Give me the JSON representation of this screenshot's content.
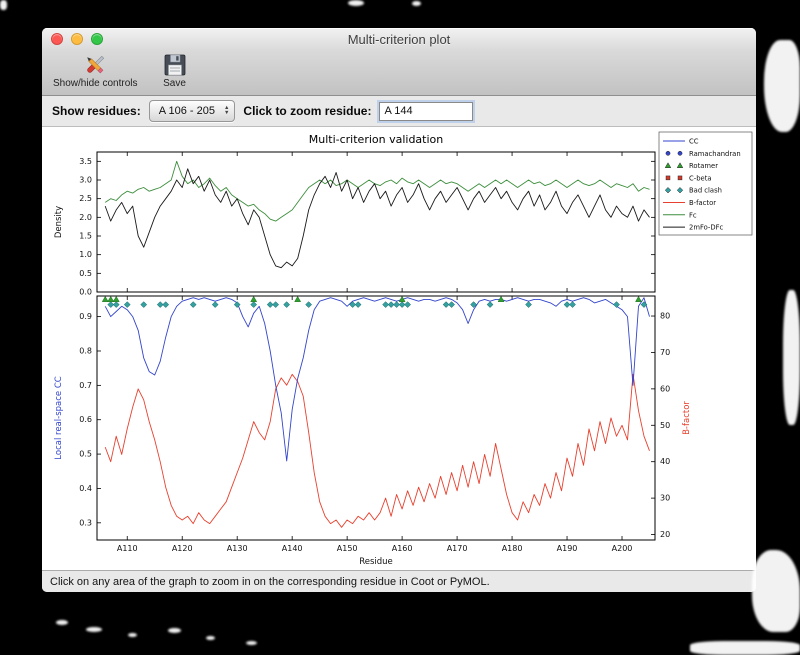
{
  "window": {
    "title": "Multi-criterion plot"
  },
  "toolbar": {
    "items": [
      {
        "icon": "crossed-tools-icon",
        "label": "Show/hide controls"
      },
      {
        "icon": "floppy-disk-icon",
        "label": "Save"
      }
    ]
  },
  "controls": {
    "show_residues_label": "Show residues:",
    "residue_range_value": "A 106 - 205",
    "zoom_residue_label": "Click to zoom residue:",
    "zoom_residue_value": "A 144"
  },
  "status": {
    "text": "Click on any area of the graph to zoom in on the corresponding residue in Coot or PyMOL."
  },
  "traffic_lights": {
    "close": "#fc5753",
    "minimize": "#fdbc40",
    "zoom": "#33c748"
  },
  "icons": {
    "show_hide_controls": "crossed-tools-icon",
    "save": "floppy-disk-icon",
    "popup_arrows": "up-down-arrows-icon"
  },
  "chart_data": {
    "type": "line",
    "title": "Multi-criterion validation",
    "xlabel": "Residue",
    "x_start": 106,
    "x_end": 205,
    "x_ticks": [
      110,
      120,
      130,
      140,
      150,
      160,
      170,
      180,
      190,
      200
    ],
    "x_tick_labels": [
      "A110",
      "A120",
      "A130",
      "A140",
      "A150",
      "A160",
      "A170",
      "A180",
      "A190",
      "A200"
    ],
    "top_panel": {
      "ylabel": "Density",
      "ylim": [
        0,
        3.75
      ],
      "yticks": [
        0.0,
        0.5,
        1.0,
        1.5,
        2.0,
        2.5,
        3.0,
        3.5
      ],
      "series": [
        {
          "name": "Fc",
          "color": "#3d8e3d",
          "values": [
            2.4,
            2.5,
            2.45,
            2.6,
            2.7,
            2.65,
            2.75,
            2.8,
            2.7,
            2.75,
            2.8,
            2.9,
            3.0,
            3.5,
            3.1,
            2.9,
            3.0,
            2.8,
            2.9,
            3.05,
            2.85,
            2.7,
            2.8,
            2.6,
            2.5,
            2.4,
            2.3,
            2.35,
            2.2,
            2.1,
            1.95,
            1.9,
            2.0,
            2.1,
            2.2,
            2.4,
            2.6,
            2.8,
            2.9,
            3.0,
            2.9,
            3.0,
            2.85,
            2.9,
            3.0,
            2.9,
            2.8,
            2.9,
            3.0,
            2.9,
            2.85,
            2.95,
            3.0,
            2.9,
            3.05,
            2.95,
            2.9,
            3.0,
            2.9,
            2.8,
            2.9,
            3.0,
            2.9,
            2.95,
            2.9,
            2.8,
            2.7,
            2.8,
            2.9,
            2.8,
            2.9,
            3.0,
            2.9,
            3.0,
            2.9,
            2.8,
            2.9,
            3.0,
            2.9,
            2.95,
            2.85,
            2.9,
            3.0,
            2.9,
            2.8,
            2.9,
            3.0,
            2.9,
            2.85,
            2.9,
            3.0,
            2.9,
            2.8,
            2.9,
            2.85,
            2.8,
            2.9,
            2.7,
            2.8,
            2.75
          ]
        },
        {
          "name": "2mFo-DFc",
          "color": "#1a1a1a",
          "values": [
            2.3,
            1.9,
            2.2,
            2.4,
            2.1,
            2.3,
            1.5,
            1.2,
            1.6,
            2.0,
            2.3,
            2.5,
            2.7,
            3.0,
            2.8,
            3.3,
            2.9,
            3.1,
            2.7,
            3.0,
            2.6,
            2.4,
            2.7,
            2.3,
            2.5,
            2.1,
            1.8,
            2.2,
            2.0,
            1.5,
            1.0,
            0.7,
            0.65,
            0.8,
            0.7,
            0.9,
            1.5,
            2.2,
            2.6,
            2.9,
            3.1,
            2.8,
            3.2,
            2.7,
            3.0,
            2.5,
            2.8,
            2.4,
            2.7,
            2.9,
            2.5,
            2.7,
            2.3,
            2.6,
            2.8,
            2.4,
            2.6,
            2.9,
            2.5,
            2.2,
            2.5,
            2.7,
            2.4,
            2.6,
            2.8,
            2.5,
            2.2,
            2.5,
            2.7,
            2.4,
            2.6,
            2.8,
            2.5,
            2.7,
            2.4,
            2.2,
            2.5,
            2.7,
            2.3,
            2.6,
            2.2,
            2.4,
            2.7,
            2.3,
            2.1,
            2.4,
            2.6,
            2.3,
            2.0,
            2.3,
            2.6,
            2.2,
            2.0,
            2.3,
            2.1,
            2.0,
            2.3,
            1.9,
            2.2,
            2.0
          ]
        }
      ]
    },
    "bottom_panel": {
      "ylabel_left": "Local real-space CC",
      "ylabel_right": "B-factor",
      "ylim_left": [
        0.25,
        0.96
      ],
      "yticks_left": [
        0.3,
        0.4,
        0.5,
        0.6,
        0.7,
        0.8,
        0.9
      ],
      "ylim_right": [
        18.5,
        85.5
      ],
      "yticks_right": [
        20,
        30,
        40,
        50,
        60,
        70,
        80
      ],
      "series_left": {
        "name": "CC",
        "color": "#3345cc",
        "values": [
          0.93,
          0.9,
          0.915,
          0.93,
          0.92,
          0.9,
          0.86,
          0.78,
          0.74,
          0.73,
          0.77,
          0.84,
          0.9,
          0.93,
          0.945,
          0.95,
          0.955,
          0.95,
          0.955,
          0.95,
          0.945,
          0.95,
          0.955,
          0.95,
          0.94,
          0.9,
          0.87,
          0.91,
          0.93,
          0.88,
          0.8,
          0.7,
          0.62,
          0.48,
          0.63,
          0.72,
          0.78,
          0.86,
          0.92,
          0.945,
          0.95,
          0.955,
          0.95,
          0.945,
          0.93,
          0.945,
          0.95,
          0.955,
          0.95,
          0.945,
          0.95,
          0.955,
          0.95,
          0.945,
          0.95,
          0.955,
          0.95,
          0.945,
          0.95,
          0.95,
          0.945,
          0.95,
          0.955,
          0.95,
          0.94,
          0.92,
          0.88,
          0.92,
          0.945,
          0.95,
          0.945,
          0.95,
          0.95,
          0.945,
          0.95,
          0.955,
          0.95,
          0.945,
          0.95,
          0.95,
          0.945,
          0.94,
          0.93,
          0.945,
          0.95,
          0.945,
          0.95,
          0.955,
          0.95,
          0.94,
          0.945,
          0.95,
          0.94,
          0.93,
          0.92,
          0.9,
          0.7,
          0.93,
          0.955,
          0.9
        ]
      },
      "series_right": {
        "name": "B-factor",
        "color": "#e8402e",
        "values": [
          44,
          40,
          47,
          42,
          49,
          55,
          60,
          57,
          51,
          46,
          40,
          33,
          28,
          25,
          24,
          25,
          23,
          26,
          24,
          23,
          25,
          27,
          29,
          33,
          37,
          41,
          46,
          51,
          48,
          46,
          51,
          60,
          63,
          61,
          64,
          62,
          58,
          48,
          37,
          29,
          25,
          23,
          24,
          22,
          24,
          23,
          25,
          24,
          26,
          24,
          26,
          30,
          25,
          31,
          27,
          32,
          28,
          33,
          29,
          34,
          30,
          36,
          31,
          37,
          32,
          39,
          33,
          40,
          34,
          42,
          36,
          45,
          38,
          31,
          26,
          24,
          29,
          26,
          31,
          28,
          34,
          30,
          37,
          32,
          41,
          36,
          45,
          39,
          49,
          43,
          51,
          45,
          52,
          47,
          50,
          46,
          64,
          54,
          47,
          43
        ]
      },
      "markers": {
        "bad_clash": {
          "shape": "diamond",
          "color": "#35a0a0",
          "edge": "#166060",
          "y": 0.935,
          "residues": [
            107,
            108,
            110,
            113,
            116,
            117,
            122,
            126,
            130,
            133,
            136,
            137,
            139,
            143,
            151,
            152,
            157,
            158,
            159,
            160,
            161,
            168,
            169,
            173,
            176,
            183,
            190,
            191,
            199,
            204
          ]
        },
        "rotamer": {
          "shape": "triangle",
          "color": "#2fa02f",
          "edge": "#1d6b1d",
          "y": 0.95,
          "residues": [
            106,
            107,
            108,
            133,
            141,
            160,
            178,
            203
          ]
        }
      }
    },
    "legend": {
      "position": "upper-right-outside",
      "entries": [
        {
          "label": "CC",
          "type": "line",
          "color": "#3345cc"
        },
        {
          "label": "Ramachandran",
          "type": "circle",
          "color": "#3345cc"
        },
        {
          "label": "Rotamer",
          "type": "triangle",
          "color": "#2fa02f"
        },
        {
          "label": "C-beta",
          "type": "square",
          "color": "#d63a2a"
        },
        {
          "label": "Bad clash",
          "type": "diamond",
          "color": "#35a0a0"
        },
        {
          "label": "B-factor",
          "type": "line",
          "color": "#e8402e"
        },
        {
          "label": "Fc",
          "type": "line",
          "color": "#3d8e3d"
        },
        {
          "label": "2mFo-DFc",
          "type": "line",
          "color": "#1a1a1a"
        }
      ]
    }
  }
}
